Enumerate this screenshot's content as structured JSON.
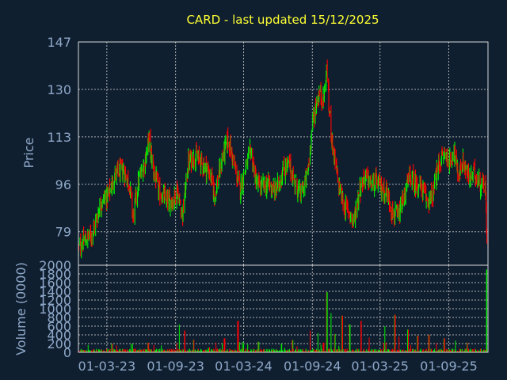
{
  "chart_data": [
    {
      "type": "candlestick",
      "title": "CARD - last updated 15/12/2025",
      "ylabel": "Price",
      "ylim": [
        67,
        147
      ],
      "yticks": [
        79,
        96,
        113,
        130,
        147
      ],
      "x_tick_labels": [
        "01-03-23",
        "01-09-23",
        "01-03-24",
        "01-09-24",
        "01-03-25",
        "01-09-25"
      ],
      "x_tick_dates": [
        "2023-03-01",
        "2023-09-01",
        "2024-03-01",
        "2024-09-01",
        "2025-03-01",
        "2025-09-01"
      ],
      "x_range": [
        "2022-12-15",
        "2025-12-15"
      ],
      "grid": true,
      "up_color": "#00ee00",
      "down_color": "#ff0000",
      "price_anchors": [
        [
          "2022-12-15",
          73
        ],
        [
          "2023-01-01",
          76
        ],
        [
          "2023-01-20",
          78
        ],
        [
          "2023-02-15",
          90
        ],
        [
          "2023-03-05",
          92
        ],
        [
          "2023-03-25",
          100
        ],
        [
          "2023-04-15",
          101
        ],
        [
          "2023-05-01",
          96
        ],
        [
          "2023-05-10",
          84
        ],
        [
          "2023-05-25",
          97
        ],
        [
          "2023-06-10",
          104
        ],
        [
          "2023-06-22",
          112
        ],
        [
          "2023-07-05",
          100
        ],
        [
          "2023-07-20",
          93
        ],
        [
          "2023-08-10",
          90
        ],
        [
          "2023-08-25",
          90
        ],
        [
          "2023-09-05",
          94
        ],
        [
          "2023-09-20",
          85
        ],
        [
          "2023-10-05",
          104
        ],
        [
          "2023-10-25",
          106
        ],
        [
          "2023-11-15",
          103
        ],
        [
          "2023-12-01",
          100
        ],
        [
          "2023-12-15",
          92
        ],
        [
          "2024-01-05",
          106
        ],
        [
          "2024-01-20",
          112
        ],
        [
          "2024-02-05",
          103
        ],
        [
          "2024-02-20",
          94
        ],
        [
          "2024-03-05",
          101
        ],
        [
          "2024-03-20",
          108
        ],
        [
          "2024-04-05",
          96
        ],
        [
          "2024-04-20",
          95
        ],
        [
          "2024-05-10",
          96
        ],
        [
          "2024-05-25",
          93
        ],
        [
          "2024-06-15",
          101
        ],
        [
          "2024-07-01",
          103
        ],
        [
          "2024-07-15",
          97
        ],
        [
          "2024-08-01",
          92
        ],
        [
          "2024-08-20",
          100
        ],
        [
          "2024-09-01",
          118
        ],
        [
          "2024-09-10",
          124
        ],
        [
          "2024-09-20",
          129
        ],
        [
          "2024-10-01",
          126
        ],
        [
          "2024-10-10",
          138
        ],
        [
          "2024-10-15",
          124
        ],
        [
          "2024-10-25",
          110
        ],
        [
          "2024-11-10",
          96
        ],
        [
          "2024-11-25",
          88
        ],
        [
          "2024-12-10",
          86
        ],
        [
          "2024-12-20",
          82
        ],
        [
          "2025-01-05",
          94
        ],
        [
          "2025-01-20",
          99
        ],
        [
          "2025-02-05",
          96
        ],
        [
          "2025-02-20",
          97
        ],
        [
          "2025-03-01",
          95
        ],
        [
          "2025-03-20",
          93
        ],
        [
          "2025-04-05",
          85
        ],
        [
          "2025-04-20",
          84
        ],
        [
          "2025-05-05",
          92
        ],
        [
          "2025-05-20",
          99
        ],
        [
          "2025-06-05",
          96
        ],
        [
          "2025-06-20",
          95
        ],
        [
          "2025-07-05",
          90
        ],
        [
          "2025-07-20",
          92
        ],
        [
          "2025-08-05",
          103
        ],
        [
          "2025-08-20",
          107
        ],
        [
          "2025-09-05",
          104
        ],
        [
          "2025-09-15",
          109
        ],
        [
          "2025-09-25",
          99
        ],
        [
          "2025-10-10",
          104
        ],
        [
          "2025-10-25",
          98
        ],
        [
          "2025-11-10",
          100
        ],
        [
          "2025-11-25",
          96
        ],
        [
          "2025-12-08",
          96
        ],
        [
          "2025-12-12",
          75
        ],
        [
          "2025-12-15",
          74
        ]
      ]
    },
    {
      "type": "bar",
      "ylabel": "Volume (0000)",
      "ylim": [
        0,
        2000
      ],
      "yticks": [
        0,
        200,
        400,
        600,
        800,
        1000,
        1200,
        1400,
        1600,
        1800,
        2000
      ],
      "grid": true,
      "typical_volume": 60,
      "spikes": [
        [
          "2023-03-15",
          200
        ],
        [
          "2023-06-20",
          220
        ],
        [
          "2023-09-10",
          640
        ],
        [
          "2023-09-25",
          500
        ],
        [
          "2023-10-20",
          290
        ],
        [
          "2024-01-10",
          320
        ],
        [
          "2024-02-15",
          720
        ],
        [
          "2024-04-10",
          240
        ],
        [
          "2024-06-10",
          200
        ],
        [
          "2024-07-10",
          280
        ],
        [
          "2024-08-25",
          500
        ],
        [
          "2024-09-15",
          440
        ],
        [
          "2024-10-01",
          220
        ],
        [
          "2024-10-10",
          1380
        ],
        [
          "2024-10-20",
          900
        ],
        [
          "2024-11-01",
          420
        ],
        [
          "2024-11-20",
          840
        ],
        [
          "2024-12-10",
          640
        ],
        [
          "2025-01-10",
          720
        ],
        [
          "2025-02-01",
          340
        ],
        [
          "2025-03-15",
          600
        ],
        [
          "2025-04-10",
          860
        ],
        [
          "2025-04-20",
          360
        ],
        [
          "2025-05-15",
          520
        ],
        [
          "2025-06-10",
          380
        ],
        [
          "2025-07-10",
          400
        ],
        [
          "2025-08-20",
          320
        ],
        [
          "2025-09-20",
          270
        ],
        [
          "2025-10-20",
          220
        ],
        [
          "2025-12-12",
          1900
        ]
      ]
    }
  ]
}
